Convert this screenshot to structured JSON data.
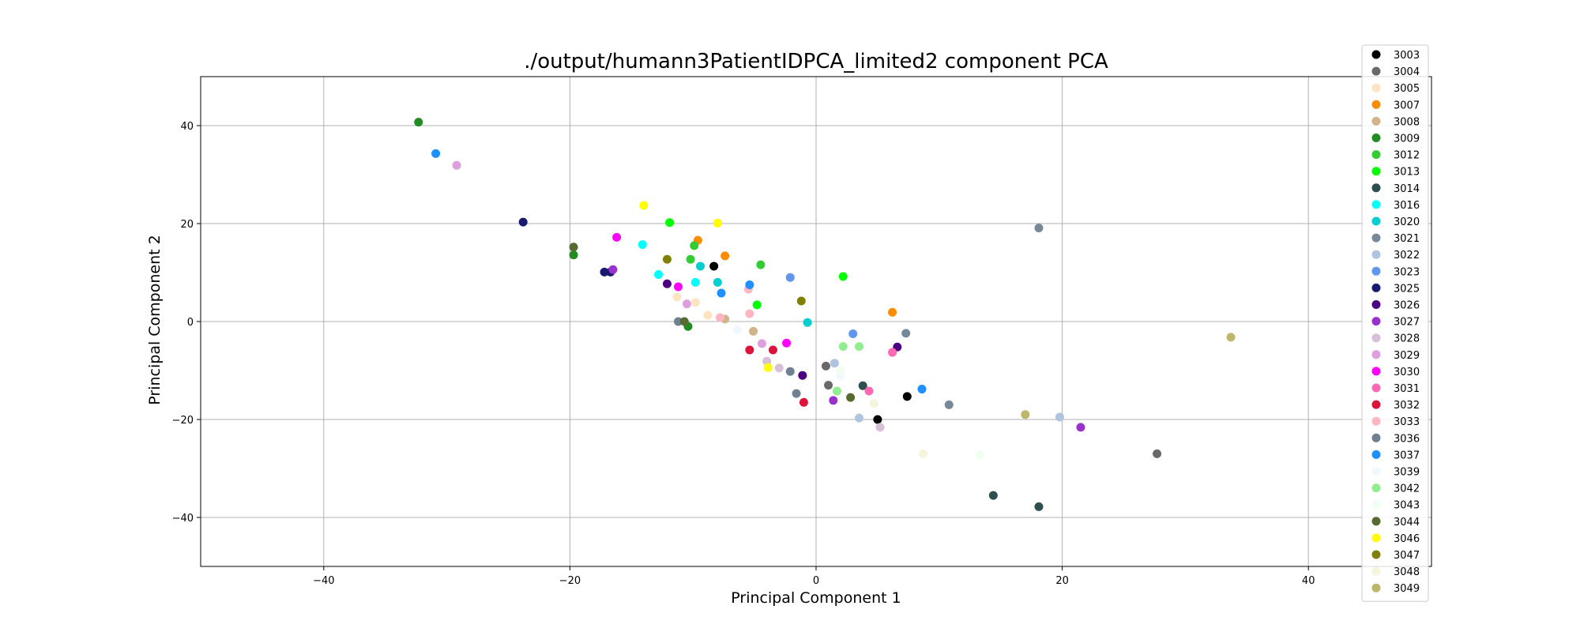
{
  "chart_data": {
    "type": "scatter",
    "title": "./output/humann3PatientIDPCA_limited2 component PCA",
    "xlabel": "Principal Component 1",
    "ylabel": "Principal Component 2",
    "xlim": [
      -50,
      50
    ],
    "ylim": [
      -50,
      50
    ],
    "xticks": [
      -40,
      -20,
      0,
      20,
      40
    ],
    "yticks": [
      -40,
      -20,
      0,
      20,
      40
    ],
    "grid": true,
    "legend_position": "right",
    "series": [
      {
        "name": "3003",
        "color": "#000000",
        "points": [
          [
            -8.3,
            11.3
          ],
          [
            7.4,
            -15.3
          ],
          [
            5.0,
            -20.0
          ]
        ]
      },
      {
        "name": "3004",
        "color": "#696969",
        "points": [
          [
            0.8,
            -9.1
          ],
          [
            1.0,
            -13.0
          ],
          [
            27.7,
            -27.0
          ]
        ]
      },
      {
        "name": "3005",
        "color": "#ffe4c4",
        "points": [
          [
            -9.8,
            3.9
          ],
          [
            -8.8,
            1.3
          ],
          [
            -11.3,
            5.0
          ]
        ]
      },
      {
        "name": "3007",
        "color": "#ff8c00",
        "points": [
          [
            -9.6,
            16.6
          ],
          [
            -7.4,
            13.4
          ],
          [
            6.2,
            1.9
          ]
        ]
      },
      {
        "name": "3008",
        "color": "#d2b48c",
        "points": [
          [
            -7.4,
            0.5
          ],
          [
            -5.1,
            -2.0
          ]
        ]
      },
      {
        "name": "3009",
        "color": "#228b22",
        "points": [
          [
            -32.3,
            40.7
          ],
          [
            -19.7,
            13.6
          ],
          [
            -10.4,
            -1.0
          ]
        ]
      },
      {
        "name": "3012",
        "color": "#32cd32",
        "points": [
          [
            -9.9,
            15.5
          ],
          [
            -10.2,
            12.7
          ],
          [
            -4.5,
            11.6
          ]
        ]
      },
      {
        "name": "3013",
        "color": "#00ff00",
        "points": [
          [
            -11.9,
            20.2
          ],
          [
            -4.8,
            3.4
          ],
          [
            2.2,
            9.2
          ]
        ]
      },
      {
        "name": "3014",
        "color": "#2f4f4f",
        "points": [
          [
            3.8,
            -13.1
          ],
          [
            14.4,
            -35.5
          ],
          [
            18.1,
            -37.8
          ]
        ]
      },
      {
        "name": "3016",
        "color": "#00ffff",
        "points": [
          [
            -14.1,
            15.7
          ],
          [
            -12.8,
            9.6
          ],
          [
            -9.8,
            8.0
          ]
        ]
      },
      {
        "name": "3020",
        "color": "#00ced1",
        "points": [
          [
            -9.4,
            11.3
          ],
          [
            -8.0,
            8.0
          ],
          [
            -0.7,
            -0.2
          ]
        ]
      },
      {
        "name": "3021",
        "color": "#778899",
        "points": [
          [
            18.1,
            19.1
          ],
          [
            7.3,
            -2.4
          ],
          [
            10.8,
            -17.0
          ]
        ]
      },
      {
        "name": "3022",
        "color": "#b0c4de",
        "points": [
          [
            1.5,
            -8.5
          ],
          [
            3.5,
            -19.7
          ],
          [
            19.8,
            -19.5
          ]
        ]
      },
      {
        "name": "3023",
        "color": "#6495ed",
        "points": [
          [
            -2.1,
            9.0
          ],
          [
            3.0,
            -2.5
          ]
        ]
      },
      {
        "name": "3025",
        "color": "#191970",
        "points": [
          [
            -23.8,
            20.3
          ],
          [
            -17.2,
            10.1
          ],
          [
            -16.7,
            10.1
          ]
        ]
      },
      {
        "name": "3026",
        "color": "#4b0082",
        "points": [
          [
            -12.1,
            7.7
          ],
          [
            6.6,
            -5.2
          ],
          [
            -1.1,
            -11.0
          ]
        ]
      },
      {
        "name": "3027",
        "color": "#9932cc",
        "points": [
          [
            -16.5,
            10.6
          ],
          [
            1.4,
            -16.1
          ],
          [
            21.5,
            -21.6
          ]
        ]
      },
      {
        "name": "3028",
        "color": "#d8bfd8",
        "points": [
          [
            -4.0,
            -8.1
          ],
          [
            -3.0,
            -9.5
          ],
          [
            5.2,
            -21.6
          ]
        ]
      },
      {
        "name": "3029",
        "color": "#dda0dd",
        "points": [
          [
            -29.2,
            31.9
          ],
          [
            -10.5,
            3.6
          ],
          [
            -4.4,
            -4.5
          ]
        ]
      },
      {
        "name": "3030",
        "color": "#ff00ff",
        "points": [
          [
            -16.2,
            17.2
          ],
          [
            -11.2,
            7.1
          ],
          [
            -2.4,
            -4.4
          ]
        ]
      },
      {
        "name": "3031",
        "color": "#ff69b4",
        "points": [
          [
            6.2,
            -6.3
          ],
          [
            4.3,
            -14.2
          ]
        ]
      },
      {
        "name": "3032",
        "color": "#dc143c",
        "points": [
          [
            -5.4,
            -5.8
          ],
          [
            -3.5,
            -5.8
          ],
          [
            -1.0,
            -16.5
          ]
        ]
      },
      {
        "name": "3033",
        "color": "#ffb6c1",
        "points": [
          [
            -7.8,
            0.8
          ],
          [
            -5.4,
            1.6
          ],
          [
            -5.5,
            6.6
          ]
        ]
      },
      {
        "name": "3036",
        "color": "#708090",
        "points": [
          [
            -11.2,
            0.0
          ],
          [
            -2.1,
            -10.2
          ],
          [
            -1.6,
            -14.7
          ]
        ]
      },
      {
        "name": "3037",
        "color": "#1e90ff",
        "points": [
          [
            -30.9,
            34.3
          ],
          [
            -5.4,
            7.5
          ],
          [
            -7.7,
            5.8
          ],
          [
            8.6,
            -13.8
          ]
        ]
      },
      {
        "name": "3039",
        "color": "#f0f8ff",
        "points": [
          [
            -6.4,
            -1.7
          ],
          [
            2.0,
            -11.0
          ]
        ]
      },
      {
        "name": "3042",
        "color": "#90ee90",
        "points": [
          [
            2.2,
            -5.1
          ],
          [
            3.5,
            -5.1
          ],
          [
            1.7,
            -14.2
          ]
        ]
      },
      {
        "name": "3043",
        "color": "#f0fff0",
        "points": [
          [
            13.3,
            -27.2
          ],
          [
            2.0,
            -10.0
          ]
        ]
      },
      {
        "name": "3044",
        "color": "#556b2f",
        "points": [
          [
            -19.7,
            15.2
          ],
          [
            -10.7,
            0.0
          ],
          [
            2.8,
            -15.5
          ]
        ]
      },
      {
        "name": "3046",
        "color": "#ffff00",
        "points": [
          [
            -14.0,
            23.7
          ],
          [
            -8.0,
            20.1
          ],
          [
            -3.9,
            -9.4
          ]
        ]
      },
      {
        "name": "3047",
        "color": "#808000",
        "points": [
          [
            -12.1,
            12.7
          ],
          [
            -1.2,
            4.2
          ]
        ]
      },
      {
        "name": "3048",
        "color": "#f5f5dc",
        "points": [
          [
            8.7,
            -27.0
          ],
          [
            4.7,
            -16.7
          ]
        ]
      },
      {
        "name": "3049",
        "color": "#bdb76b",
        "points": [
          [
            33.7,
            -3.2
          ],
          [
            17.0,
            -19.0
          ]
        ]
      }
    ]
  }
}
